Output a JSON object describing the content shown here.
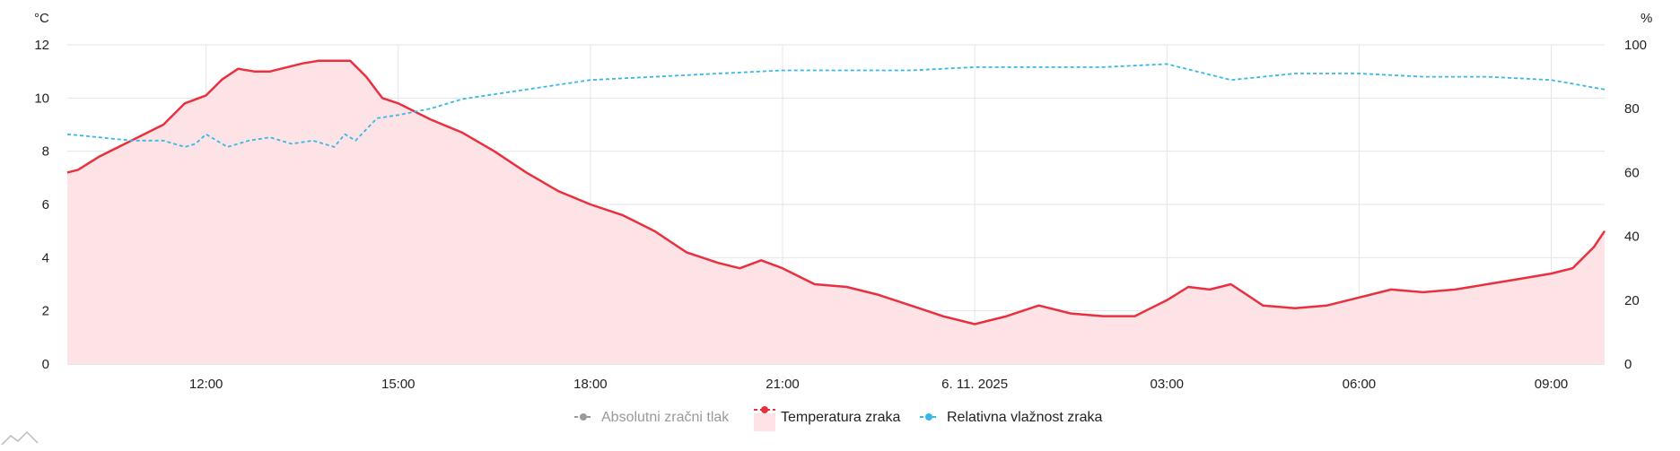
{
  "colors": {
    "temperature": "#e8303f",
    "temperature_fill": "#fde3e6",
    "humidity": "#35b9e6",
    "pressure": "#9a9a9a",
    "grid": "#e6e6e6",
    "text": "#222222"
  },
  "chart_data": {
    "type": "line",
    "grid": true,
    "legend_position": "bottom-center",
    "left_axis": {
      "unit": "°C",
      "ylim": [
        0,
        12
      ],
      "ticks": [
        "0",
        "2",
        "4",
        "6",
        "8",
        "10",
        "12"
      ]
    },
    "right_axis": {
      "unit": "%",
      "ylim": [
        0,
        100
      ],
      "ticks": [
        "0",
        "20",
        "40",
        "60",
        "80",
        "100"
      ]
    },
    "x_axis": {
      "range": [
        "2025-11-05 09:50",
        "2025-11-06 09:50"
      ],
      "ticks": [
        {
          "at": "2025-11-05 12:00",
          "label": "12:00"
        },
        {
          "at": "2025-11-05 15:00",
          "label": "15:00"
        },
        {
          "at": "2025-11-05 18:00",
          "label": "18:00"
        },
        {
          "at": "2025-11-05 21:00",
          "label": "21:00"
        },
        {
          "at": "2025-11-06 00:00",
          "label": "6. 11. 2025"
        },
        {
          "at": "2025-11-06 03:00",
          "label": "03:00"
        },
        {
          "at": "2025-11-06 06:00",
          "label": "06:00"
        },
        {
          "at": "2025-11-06 09:00",
          "label": "09:00"
        }
      ]
    },
    "series": [
      {
        "name": "Absolutni zračni tlak",
        "hidden": true,
        "x": [],
        "values": []
      },
      {
        "name": "Temperatura zraka",
        "axis": "left",
        "style": "area",
        "x": [
          "2025-11-05 09:50",
          "2025-11-05 10:00",
          "2025-11-05 10:20",
          "2025-11-05 10:40",
          "2025-11-05 11:00",
          "2025-11-05 11:20",
          "2025-11-05 11:40",
          "2025-11-05 12:00",
          "2025-11-05 12:15",
          "2025-11-05 12:30",
          "2025-11-05 12:45",
          "2025-11-05 13:00",
          "2025-11-05 13:30",
          "2025-11-05 13:45",
          "2025-11-05 14:00",
          "2025-11-05 14:15",
          "2025-11-05 14:30",
          "2025-11-05 14:45",
          "2025-11-05 15:00",
          "2025-11-05 15:30",
          "2025-11-05 16:00",
          "2025-11-05 16:30",
          "2025-11-05 17:00",
          "2025-11-05 17:30",
          "2025-11-05 18:00",
          "2025-11-05 18:30",
          "2025-11-05 19:00",
          "2025-11-05 19:30",
          "2025-11-05 20:00",
          "2025-11-05 20:20",
          "2025-11-05 20:40",
          "2025-11-05 21:00",
          "2025-11-05 21:30",
          "2025-11-05 22:00",
          "2025-11-05 22:30",
          "2025-11-05 23:00",
          "2025-11-05 23:30",
          "2025-11-06 00:00",
          "2025-11-06 00:30",
          "2025-11-06 01:00",
          "2025-11-06 01:30",
          "2025-11-06 02:00",
          "2025-11-06 02:30",
          "2025-11-06 03:00",
          "2025-11-06 03:20",
          "2025-11-06 03:40",
          "2025-11-06 04:00",
          "2025-11-06 04:30",
          "2025-11-06 05:00",
          "2025-11-06 05:30",
          "2025-11-06 06:00",
          "2025-11-06 06:30",
          "2025-11-06 07:00",
          "2025-11-06 07:30",
          "2025-11-06 08:00",
          "2025-11-06 08:30",
          "2025-11-06 09:00",
          "2025-11-06 09:20",
          "2025-11-06 09:40",
          "2025-11-06 09:50"
        ],
        "values": [
          7.2,
          7.3,
          7.8,
          8.2,
          8.6,
          9.0,
          9.8,
          10.1,
          10.7,
          11.1,
          11.0,
          11.0,
          11.3,
          11.4,
          11.4,
          11.4,
          10.8,
          10.0,
          9.8,
          9.2,
          8.7,
          8.0,
          7.2,
          6.5,
          6.0,
          5.6,
          5.0,
          4.2,
          3.8,
          3.6,
          3.9,
          3.6,
          3.0,
          2.9,
          2.6,
          2.2,
          1.8,
          1.5,
          1.8,
          2.2,
          1.9,
          1.8,
          1.8,
          2.4,
          2.9,
          2.8,
          3.0,
          2.2,
          2.1,
          2.2,
          2.5,
          2.8,
          2.7,
          2.8,
          3.0,
          3.2,
          3.4,
          3.6,
          4.4,
          5.0
        ]
      },
      {
        "name": "Relativna vlažnost zraka",
        "axis": "right",
        "style": "dashed",
        "x": [
          "2025-11-05 09:50",
          "2025-11-05 10:20",
          "2025-11-05 10:50",
          "2025-11-05 11:20",
          "2025-11-05 11:40",
          "2025-11-05 11:50",
          "2025-11-05 12:00",
          "2025-11-05 12:20",
          "2025-11-05 12:40",
          "2025-11-05 13:00",
          "2025-11-05 13:20",
          "2025-11-05 13:40",
          "2025-11-05 14:00",
          "2025-11-05 14:10",
          "2025-11-05 14:20",
          "2025-11-05 14:40",
          "2025-11-05 15:00",
          "2025-11-05 15:30",
          "2025-11-05 16:00",
          "2025-11-05 17:00",
          "2025-11-05 18:00",
          "2025-11-05 19:00",
          "2025-11-05 20:00",
          "2025-11-05 21:00",
          "2025-11-05 22:00",
          "2025-11-05 23:00",
          "2025-11-06 00:00",
          "2025-11-06 01:00",
          "2025-11-06 02:00",
          "2025-11-06 03:00",
          "2025-11-06 04:00",
          "2025-11-06 05:00",
          "2025-11-06 06:00",
          "2025-11-06 07:00",
          "2025-11-06 08:00",
          "2025-11-06 09:00",
          "2025-11-06 09:50"
        ],
        "values": [
          72,
          71,
          70,
          70,
          68,
          69,
          72,
          68,
          70,
          71,
          69,
          70,
          68,
          72,
          70,
          77,
          78,
          80,
          83,
          86,
          89,
          90,
          91,
          92,
          92,
          92,
          93,
          93,
          93,
          94,
          89,
          91,
          91,
          90,
          90,
          89,
          86
        ]
      }
    ]
  }
}
